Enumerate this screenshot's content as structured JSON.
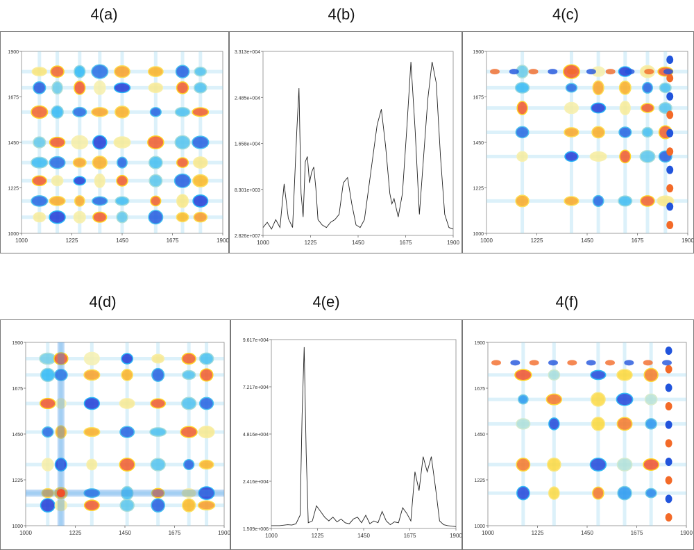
{
  "titles": [
    "4(a)",
    "4(b)",
    "4(c)",
    "4(d)",
    "4(e)",
    "4(f)"
  ],
  "chart_data": [
    {
      "id": "a",
      "type": "heatmap",
      "title": "4(a)",
      "xlim": [
        1000,
        1900
      ],
      "ylim": [
        1000,
        1900
      ],
      "xticks": [
        "1000",
        "1225",
        "1450",
        "1675",
        "1900"
      ],
      "yticks": [
        "1900",
        "1675",
        "1450",
        "1225",
        "1000"
      ],
      "peaks": [
        1080,
        1160,
        1260,
        1350,
        1450,
        1600,
        1720,
        1800
      ],
      "colormap": [
        "#1f3bd6",
        "#29b6f6",
        "#f5f5c8",
        "#ffd21f",
        "#f0502a"
      ]
    },
    {
      "id": "b",
      "type": "line",
      "title": "4(b)",
      "xlim": [
        1000,
        1900
      ],
      "xticks": [
        "1000",
        "1225",
        "1450",
        "1675",
        "1900"
      ],
      "yticks": [
        "3.313e+004",
        "2.485e+004",
        "1.658e+004",
        "8.301e+003",
        "2.826e+007"
      ],
      "x": [
        1000,
        1020,
        1040,
        1060,
        1080,
        1100,
        1120,
        1140,
        1160,
        1170,
        1180,
        1190,
        1200,
        1210,
        1220,
        1230,
        1240,
        1250,
        1260,
        1280,
        1300,
        1320,
        1340,
        1360,
        1380,
        1400,
        1420,
        1440,
        1460,
        1480,
        1500,
        1520,
        1540,
        1560,
        1580,
        1600,
        1610,
        1620,
        1640,
        1660,
        1680,
        1700,
        1720,
        1740,
        1760,
        1780,
        1800,
        1820,
        1840,
        1860,
        1880,
        1900
      ],
      "y": [
        1500,
        2500,
        1200,
        3000,
        1500,
        9800,
        3200,
        1500,
        20000,
        28000,
        8000,
        3500,
        14000,
        15000,
        10000,
        12000,
        13000,
        9000,
        3000,
        2000,
        1500,
        2500,
        3000,
        4000,
        10000,
        11000,
        6000,
        2000,
        1500,
        3000,
        9000,
        15000,
        21000,
        24000,
        17000,
        8000,
        6000,
        7000,
        3500,
        8000,
        20000,
        33000,
        20000,
        4000,
        15000,
        26000,
        33000,
        29000,
        15000,
        4000,
        1500,
        1200
      ],
      "ymax": 35000
    },
    {
      "id": "c",
      "type": "heatmap",
      "title": "4(c)",
      "xlim": [
        1000,
        1900
      ],
      "ylim": [
        1000,
        1900
      ],
      "xticks": [
        "1000",
        "1225",
        "1450",
        "1675",
        "1900"
      ],
      "yticks": [
        "1900",
        "1675",
        "1450",
        "1225",
        "1000"
      ],
      "peaks": [
        1160,
        1380,
        1500,
        1620,
        1720,
        1800
      ],
      "edge_peak": 1820,
      "colormap": [
        "#1f3bd6",
        "#29b6f6",
        "#f5f5c8",
        "#ffd21f",
        "#f0502a"
      ]
    },
    {
      "id": "d",
      "type": "heatmap",
      "title": "4(d)",
      "xlim": [
        1000,
        1900
      ],
      "ylim": [
        1000,
        1900
      ],
      "xticks": [
        "1000",
        "1225",
        "1450",
        "1675",
        "1900"
      ],
      "yticks": [
        "1900",
        "1675",
        "1450",
        "1225",
        "1000"
      ],
      "peaks": [
        1100,
        1160,
        1300,
        1460,
        1600,
        1740,
        1820
      ],
      "strong_peak": 1160,
      "colormap": [
        "#1f3bd6",
        "#29b6f6",
        "#f5f5c8",
        "#ffd21f",
        "#f0502a"
      ]
    },
    {
      "id": "e",
      "type": "line",
      "title": "4(e)",
      "xlim": [
        1000,
        1900
      ],
      "xticks": [
        "1000",
        "1225",
        "1450",
        "1675",
        "1900"
      ],
      "yticks": [
        "9.617e+004",
        "7.217e+004",
        "4.816e+004",
        "2.416e+004",
        "1.509e+006"
      ],
      "x": [
        1000,
        1040,
        1080,
        1100,
        1120,
        1140,
        1150,
        1160,
        1170,
        1180,
        1200,
        1220,
        1240,
        1260,
        1280,
        1300,
        1320,
        1340,
        1360,
        1380,
        1400,
        1420,
        1440,
        1460,
        1480,
        1500,
        1520,
        1540,
        1560,
        1580,
        1600,
        1620,
        1640,
        1660,
        1680,
        1700,
        1720,
        1740,
        1760,
        1780,
        1800,
        1820,
        1840,
        1860,
        1880,
        1900
      ],
      "y": [
        1500,
        1500,
        2000,
        1800,
        2500,
        7000,
        60000,
        96000,
        40000,
        3000,
        4000,
        12000,
        9000,
        6000,
        4000,
        6000,
        3500,
        5000,
        3000,
        2500,
        5000,
        6000,
        3000,
        7000,
        2500,
        4000,
        3000,
        9000,
        4000,
        2000,
        3500,
        3000,
        11000,
        8000,
        4000,
        30000,
        20000,
        38000,
        30000,
        38000,
        22000,
        4000,
        2000,
        1500,
        1200,
        1000
      ],
      "ymax": 100000
    },
    {
      "id": "f",
      "type": "heatmap",
      "title": "4(f)",
      "xlim": [
        1000,
        1900
      ],
      "ylim": [
        1000,
        1900
      ],
      "xticks": [
        "1000",
        "1225",
        "1450",
        "1675",
        "1900"
      ],
      "yticks": [
        "1900",
        "1675",
        "1450",
        "1225",
        "1000"
      ],
      "peaks": [
        1160,
        1300,
        1500,
        1620,
        1740
      ],
      "edge_peak": 1820,
      "colormap": [
        "#1f3bd6",
        "#29b6f6",
        "#f5f5c8",
        "#ffd21f",
        "#f0502a"
      ]
    }
  ]
}
